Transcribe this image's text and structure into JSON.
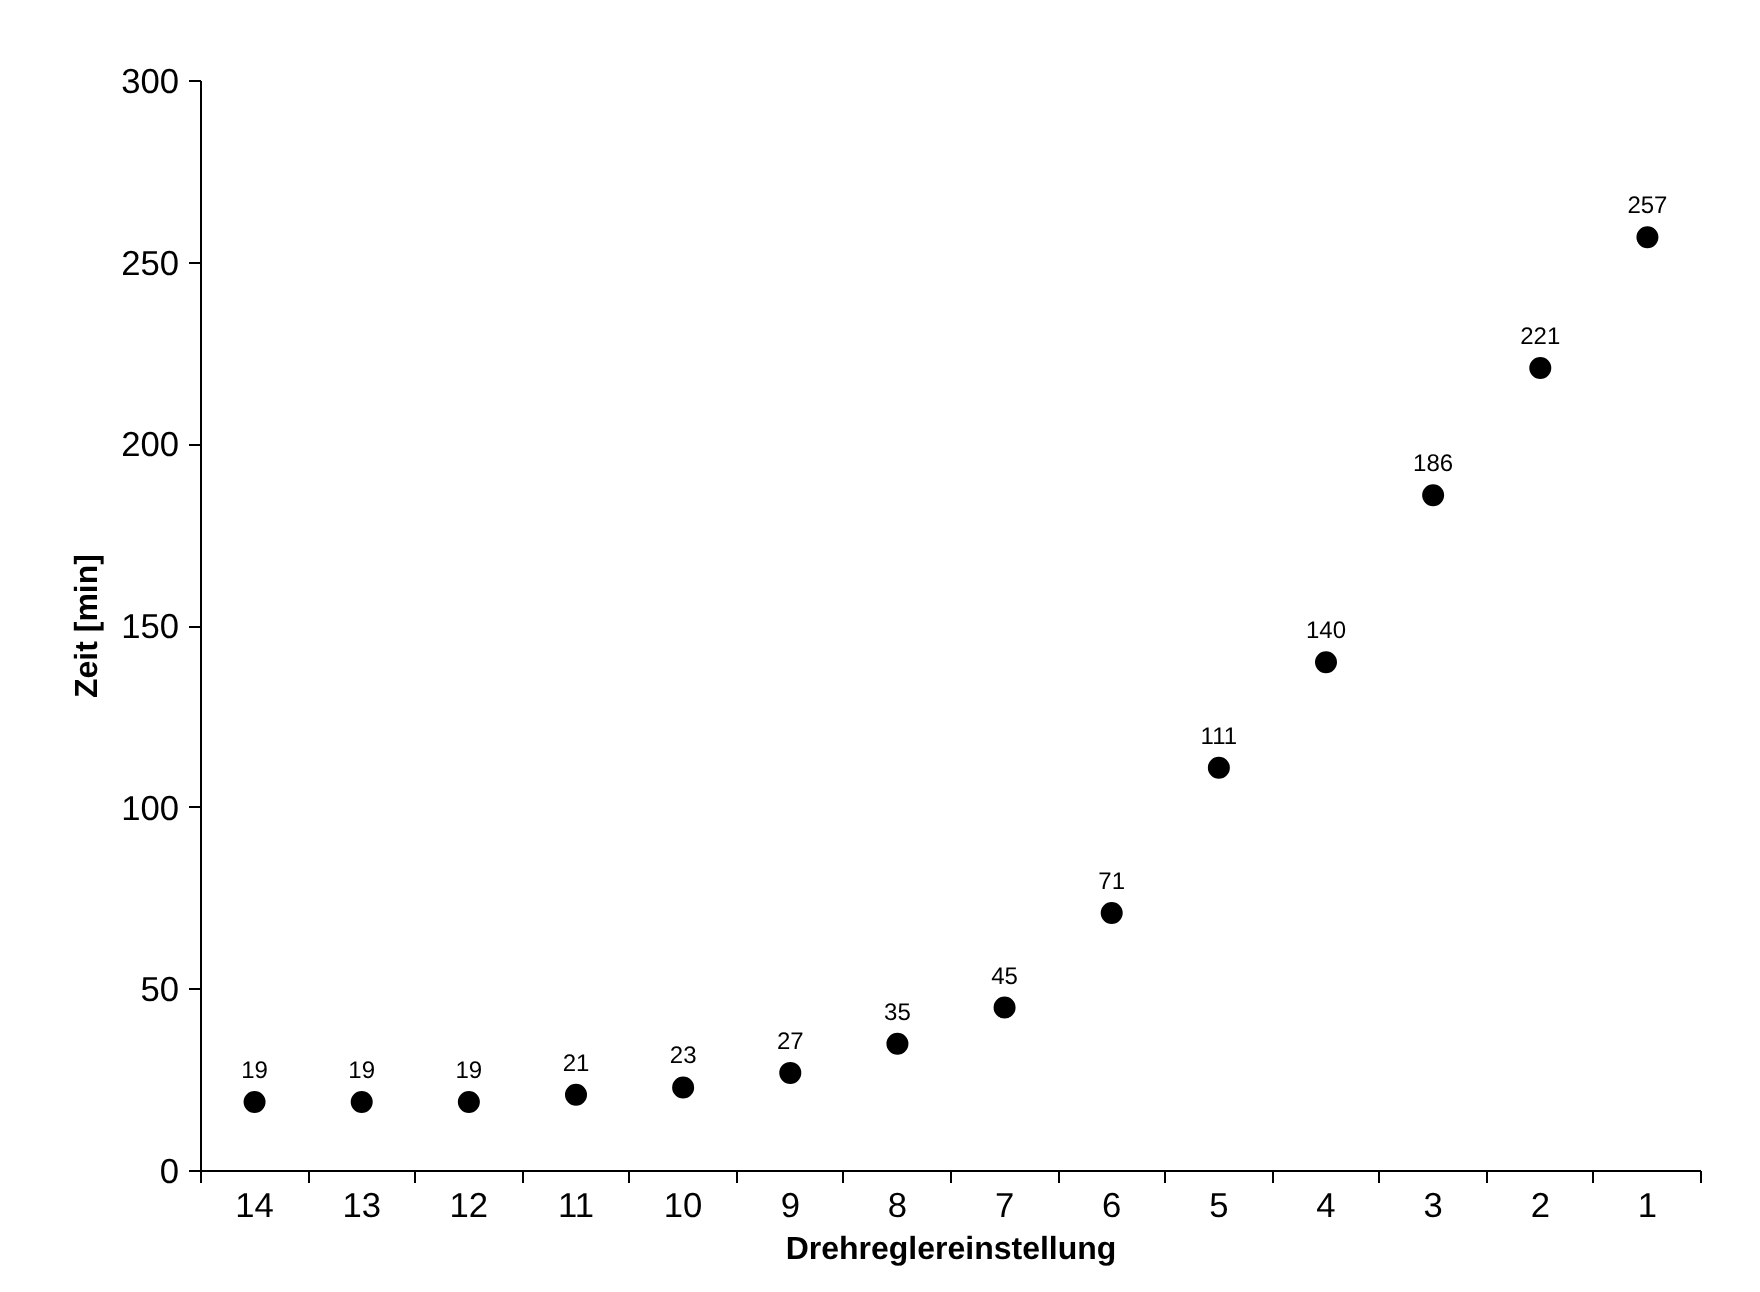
{
  "chart_data": {
    "type": "scatter",
    "xlabel": "Drehreglereinstellung",
    "ylabel": "Zeit [min]",
    "categories": [
      "14",
      "13",
      "12",
      "11",
      "10",
      "9",
      "8",
      "7",
      "6",
      "5",
      "4",
      "3",
      "2",
      "1"
    ],
    "values": [
      19,
      19,
      19,
      21,
      23,
      27,
      35,
      45,
      71,
      111,
      140,
      186,
      221,
      257
    ],
    "color": "#000000",
    "marker": "circle",
    "data_labels": true,
    "grid": false,
    "ylim": [
      0,
      300
    ],
    "yticks": [
      0,
      50,
      100,
      150,
      200,
      250,
      300
    ]
  }
}
